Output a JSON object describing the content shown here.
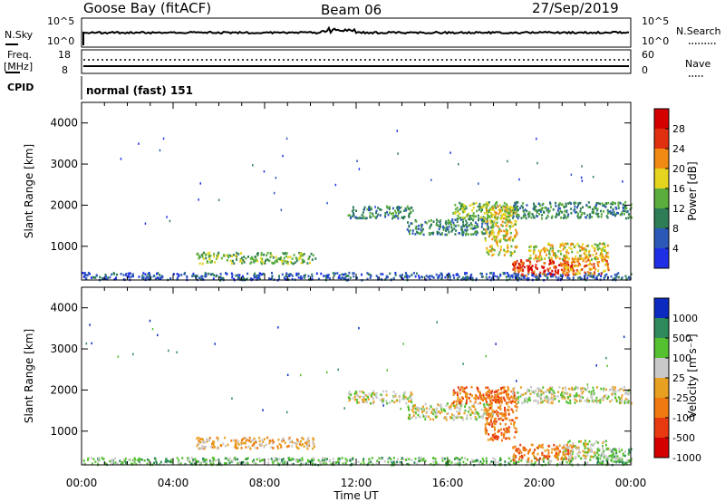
{
  "header": {
    "station": "Goose Bay (fitACF)",
    "beam": "Beam 06",
    "date": "27/Sep/2019"
  },
  "noise_panel": {
    "left_label": "N.Sky",
    "right_label": "N.Search",
    "left_ticks": [
      "10^5",
      "10^0"
    ],
    "right_ticks": [
      "10^5",
      "10^0"
    ]
  },
  "freq_panel": {
    "left_label_line1": "Freq.",
    "left_label_line2": "[MHz]",
    "right_label": "Nave",
    "left_ticks": [
      "18",
      "8"
    ],
    "right_ticks": [
      "60",
      "0"
    ]
  },
  "cpid": {
    "label": "CPID",
    "value": "normal (fast) 151"
  },
  "colors": {
    "power": [
      "#1f2fe6",
      "#2c58b8",
      "#2e7d57",
      "#5cae3c",
      "#e6d51e",
      "#f08a12",
      "#e03010",
      "#d40000"
    ],
    "velocity": [
      "#0b2bc0",
      "#2d8a5a",
      "#55c030",
      "#c8c8c8",
      "#e8a020",
      "#f07a10",
      "#e83a10",
      "#d40000"
    ]
  },
  "chart_data": [
    {
      "type": "heatmap",
      "title": "",
      "xlabel": "Time UT",
      "ylabel": "Slant Range [km]",
      "x_ticks": [
        "00:00",
        "04:00",
        "08:00",
        "12:00",
        "16:00",
        "20:00",
        "00:00"
      ],
      "x_range_hours": [
        0,
        24
      ],
      "y_ticks": [
        1000,
        2000,
        3000,
        4000
      ],
      "ylim": [
        180,
        4500
      ],
      "colorbar": {
        "label": "Power [dB]",
        "ticks": [
          "4",
          "8",
          "12",
          "16",
          "20",
          "24",
          "28"
        ],
        "range": [
          0,
          30
        ]
      },
      "echo_regions": [
        {
          "t0": 0.0,
          "t1": 24.0,
          "r0": 200,
          "r1": 380,
          "level": 1
        },
        {
          "t0": 5.0,
          "t1": 10.2,
          "r0": 600,
          "r1": 870,
          "level": 3
        },
        {
          "t0": 11.6,
          "t1": 14.4,
          "r0": 1700,
          "r1": 2000,
          "level": 2
        },
        {
          "t0": 14.2,
          "t1": 18.0,
          "r0": 1300,
          "r1": 1700,
          "level": 2
        },
        {
          "t0": 16.2,
          "t1": 18.8,
          "r0": 1700,
          "r1": 2100,
          "level": 3
        },
        {
          "t0": 17.6,
          "t1": 19.0,
          "r0": 800,
          "r1": 2000,
          "level": 4
        },
        {
          "t0": 18.8,
          "t1": 24.0,
          "r0": 1700,
          "r1": 2100,
          "level": 2
        },
        {
          "t0": 18.8,
          "t1": 21.5,
          "r0": 300,
          "r1": 700,
          "level": 6
        },
        {
          "t0": 21.0,
          "t1": 23.0,
          "r0": 350,
          "r1": 800,
          "level": 5
        },
        {
          "t0": 19.5,
          "t1": 23.0,
          "r0": 700,
          "r1": 1100,
          "level": 4
        }
      ]
    },
    {
      "type": "heatmap",
      "title": "",
      "xlabel": "Time UT",
      "ylabel": "Slant Range [km]",
      "x_ticks": [
        "00:00",
        "04:00",
        "08:00",
        "12:00",
        "16:00",
        "20:00",
        "00:00"
      ],
      "x_range_hours": [
        0,
        24
      ],
      "y_ticks": [
        1000,
        2000,
        3000,
        4000
      ],
      "ylim": [
        180,
        4500
      ],
      "colorbar": {
        "label": "Velocity [m s⁻¹]",
        "ticks": [
          "1000",
          "500",
          "100",
          "25",
          "-25",
          "-100",
          "-500",
          "-1000"
        ],
        "range": [
          -1000,
          1000
        ]
      },
      "echo_regions": [
        {
          "t0": 0.0,
          "t1": 24.0,
          "r0": 200,
          "r1": 380,
          "level": 2
        },
        {
          "t0": 5.0,
          "t1": 10.2,
          "r0": 600,
          "r1": 870,
          "level": 4
        },
        {
          "t0": 11.6,
          "t1": 14.4,
          "r0": 1700,
          "r1": 2000,
          "level": 3
        },
        {
          "t0": 14.2,
          "t1": 18.0,
          "r0": 1300,
          "r1": 1700,
          "level": 3
        },
        {
          "t0": 16.2,
          "t1": 18.8,
          "r0": 1700,
          "r1": 2100,
          "level": 5
        },
        {
          "t0": 17.6,
          "t1": 19.0,
          "r0": 800,
          "r1": 2000,
          "level": 5
        },
        {
          "t0": 18.8,
          "t1": 24.0,
          "r0": 1700,
          "r1": 2100,
          "level": 3
        },
        {
          "t0": 18.8,
          "t1": 21.5,
          "r0": 300,
          "r1": 700,
          "level": 5
        },
        {
          "t0": 21.0,
          "t1": 23.0,
          "r0": 350,
          "r1": 800,
          "level": 3
        },
        {
          "t0": 22.5,
          "t1": 24.0,
          "r0": 250,
          "r1": 600,
          "level": 2
        }
      ]
    }
  ]
}
